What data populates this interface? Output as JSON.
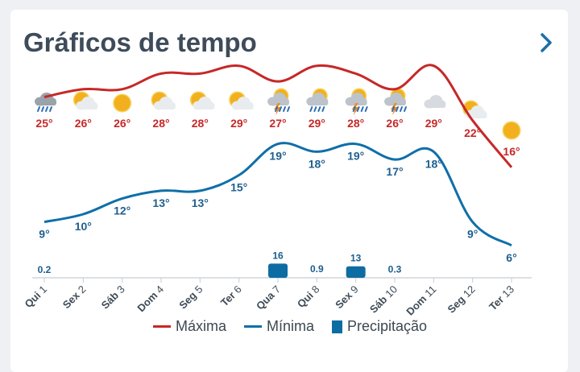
{
  "header": {
    "title": "Gráficos de tempo"
  },
  "colors": {
    "max": "#c62828",
    "min": "#0f6fa8",
    "precip": "#0d6da3",
    "axis": "#c7cdd3"
  },
  "legend": {
    "max_label": "Máxima",
    "min_label": "Mínima",
    "precip_label": "Precipitação"
  },
  "chart_data": {
    "type": "line",
    "categories": [
      "Qui 1",
      "Sex 2",
      "Sáb 3",
      "Dom 4",
      "Seg 5",
      "Ter 6",
      "Qua 7",
      "Qui 8",
      "Sex 9",
      "Sáb 10",
      "Dom 11",
      "Seg 12",
      "Ter 13"
    ],
    "icons": [
      "rain-cloud-icon",
      "partly-sunny-icon",
      "sun-icon",
      "partly-sunny-icon",
      "partly-sunny-icon",
      "partly-sunny-icon",
      "thunderstorm-sun-icon",
      "rain-sun-icon",
      "thunderstorm-sun-icon",
      "thunderstorm-sun-icon",
      "cloud-icon",
      "partly-sunny-icon",
      "sun-icon"
    ],
    "series": [
      {
        "name": "Máxima",
        "values": [
          25,
          26,
          26,
          28,
          28,
          29,
          27,
          29,
          28,
          26,
          29,
          22,
          16
        ],
        "labels": [
          "25°",
          "26°",
          "26°",
          "28°",
          "28°",
          "29°",
          "27°",
          "29°",
          "28°",
          "26°",
          "29°",
          "22°",
          "16°"
        ]
      },
      {
        "name": "Mínima",
        "values": [
          9,
          10,
          12,
          13,
          13,
          15,
          19,
          18,
          19,
          17,
          18,
          9,
          6
        ],
        "labels": [
          "9°",
          "10°",
          "12°",
          "13°",
          "13°",
          "15°",
          "19°",
          "18°",
          "19°",
          "17°",
          "18°",
          "9°",
          "6°"
        ]
      },
      {
        "name": "Precipitação",
        "values": [
          0.2,
          0,
          0,
          0,
          0,
          0,
          16,
          0.9,
          13,
          0.3,
          0,
          0,
          0
        ],
        "labels": [
          "0.2",
          "",
          "",
          "",
          "",
          "",
          "16",
          "0.9",
          "13",
          "0.3",
          "",
          "",
          ""
        ]
      }
    ]
  }
}
